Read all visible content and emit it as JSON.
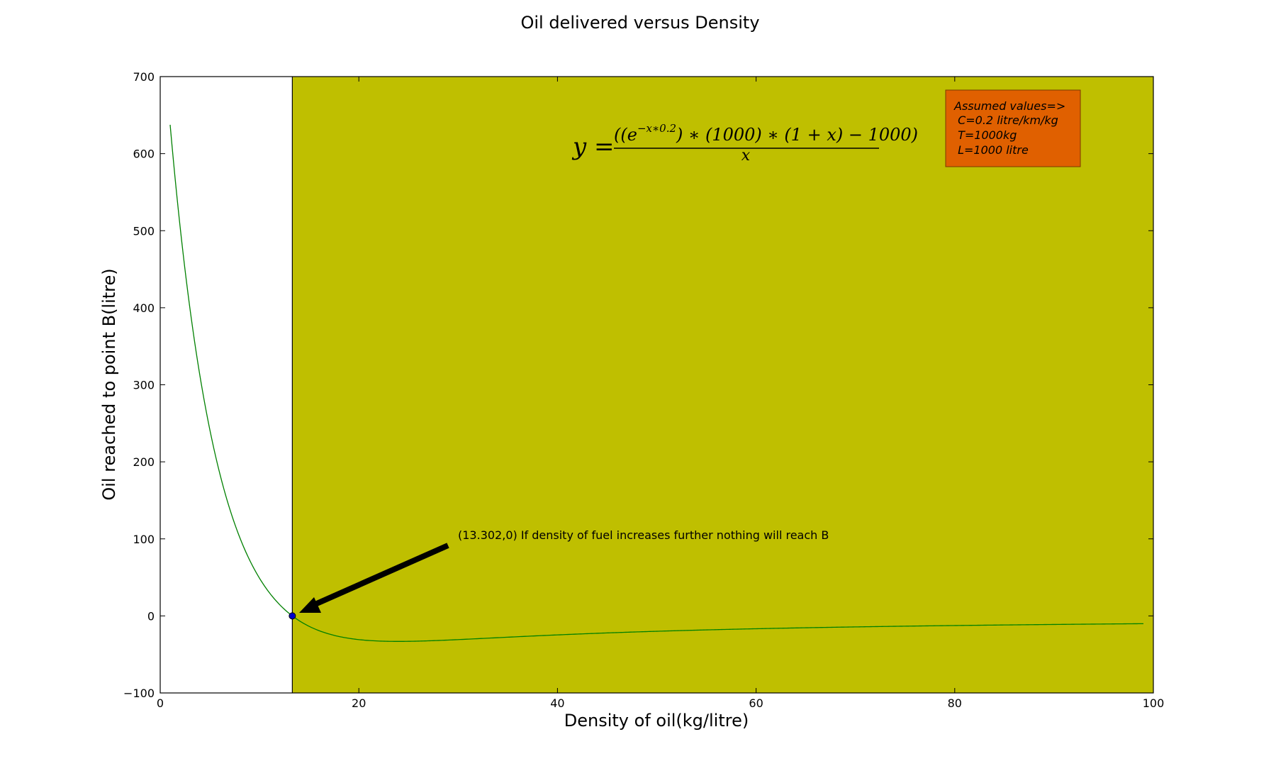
{
  "chart_data": {
    "type": "line",
    "title": "Oil delivered versus Density",
    "xlabel": "Density of oil(kg/litre)",
    "ylabel": "Oil reached to point B(litre)",
    "xlim": [
      0,
      100
    ],
    "ylim": [
      -100,
      700
    ],
    "xticks": [
      "0",
      "20",
      "40",
      "60",
      "80",
      "100"
    ],
    "yticks": [
      "−100",
      "0",
      "100",
      "200",
      "300",
      "400",
      "500",
      "600",
      "700"
    ],
    "grid": false,
    "series": [
      {
        "color": "#008000",
        "x": [
          1,
          1.5,
          2,
          3,
          4,
          5,
          6,
          7,
          8,
          9,
          10,
          11,
          12,
          13,
          13.302,
          14,
          15,
          16,
          18,
          20,
          22,
          24,
          26,
          28,
          30,
          35,
          40,
          45,
          50,
          55,
          60,
          65,
          70,
          75,
          80,
          85,
          90,
          95,
          99
        ],
        "y": [
          637.5,
          569.5,
          505.9,
          391.3,
          292.3,
          209.6,
          142.7,
          90.6,
          51.6,
          23.4,
          4.1,
          -11.8,
          -21.9,
          -28.1,
          0,
          -5,
          -13,
          -19.1,
          -27.6,
          -31.8,
          -33.5,
          -33.7,
          -33.2,
          -32.2,
          -31.0,
          -28.0,
          -25.0,
          -22.7,
          -20.6,
          -18.9,
          -17.4,
          -16.1,
          -15.0,
          -14.1,
          -13.2,
          -12.5,
          -11.8,
          -11.2,
          -10.7
        ]
      }
    ],
    "highlight_point": {
      "x": 13.302,
      "y": 0,
      "color": "#0000cc"
    },
    "shaded_region": {
      "x_from": 13.302,
      "x_to": 100,
      "color": "#bfbf00"
    },
    "annotation": {
      "text": "(13.302,0) If density of fuel increases further nothing will reach B",
      "x": 30,
      "y": 100
    },
    "equation": {
      "lhs": "y =",
      "numerator": "((e",
      "exponent": "−x∗0.2",
      "numerator_rest": ") ∗ (1000) ∗ (1 + x) − 1000)",
      "denominator": "x"
    },
    "info_box": {
      "color": "#e06000",
      "lines": [
        "Assumed values=>",
        " C=0.2 litre/km/kg",
        " T=1000kg",
        " L=1000 litre"
      ]
    }
  }
}
